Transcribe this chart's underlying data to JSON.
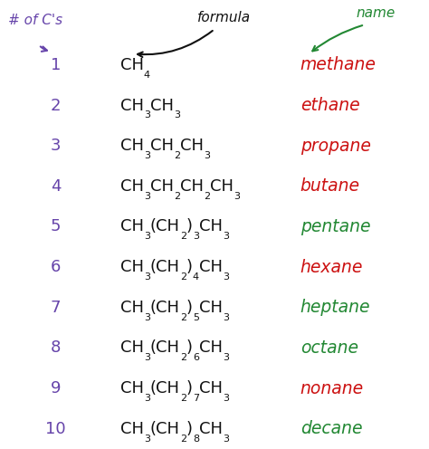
{
  "background_color": "#ffffff",
  "num_color": "#6644aa",
  "formula_color": "#111111",
  "name_colors": [
    "#cc1111",
    "#cc1111",
    "#cc1111",
    "#cc1111",
    "#228833",
    "#cc1111",
    "#228833",
    "#228833",
    "#cc1111",
    "#228833"
  ],
  "header_cs_color": "#6644aa",
  "header_formula_color": "#111111",
  "header_name_color": "#228833",
  "numbers": [
    "1",
    "2",
    "3",
    "4",
    "5",
    "6",
    "7",
    "8",
    "9",
    "10"
  ],
  "names": [
    "methane",
    "ethane",
    "propane",
    "butane",
    "pentane",
    "hexane",
    "heptane",
    "octane",
    "nonane",
    "decane"
  ],
  "formulas": [
    [
      [
        "CH",
        "4",
        ""
      ]
    ],
    [
      [
        "CH",
        "3",
        ""
      ],
      [
        "CH",
        "3",
        ""
      ]
    ],
    [
      [
        "CH",
        "3",
        ""
      ],
      [
        "CH",
        "2",
        ""
      ],
      [
        "CH",
        "3",
        ""
      ]
    ],
    [
      [
        "CH",
        "3",
        ""
      ],
      [
        "CH",
        "2",
        ""
      ],
      [
        "CH",
        "2",
        ""
      ],
      [
        "CH",
        "3",
        ""
      ]
    ],
    [
      [
        "CH",
        "3",
        ""
      ],
      [
        "(CH",
        "2",
        ")"
      ],
      [
        "",
        "3",
        ""
      ],
      [
        "CH",
        "3",
        ""
      ]
    ],
    [
      [
        "CH",
        "3",
        ""
      ],
      [
        "(CH",
        "2",
        ")"
      ],
      [
        "",
        "4",
        ""
      ],
      [
        "CH",
        "3",
        ""
      ]
    ],
    [
      [
        "CH",
        "3",
        ""
      ],
      [
        "(CH",
        "2",
        ")"
      ],
      [
        "",
        "5",
        ""
      ],
      [
        "CH",
        "3",
        ""
      ]
    ],
    [
      [
        "CH",
        "3",
        ""
      ],
      [
        "(CH",
        "2",
        ")"
      ],
      [
        "",
        "6",
        ""
      ],
      [
        "CH",
        "3",
        ""
      ]
    ],
    [
      [
        "CH",
        "3",
        ""
      ],
      [
        "(CH",
        "2",
        ")"
      ],
      [
        "",
        "7",
        ""
      ],
      [
        "CH",
        "3",
        ""
      ]
    ],
    [
      [
        "CH",
        "3",
        ""
      ],
      [
        "(CH",
        "2",
        ")"
      ],
      [
        "",
        "8",
        ""
      ],
      [
        "CH",
        "3",
        ""
      ]
    ]
  ],
  "figsize": [
    4.74,
    4.96
  ],
  "dpi": 100
}
